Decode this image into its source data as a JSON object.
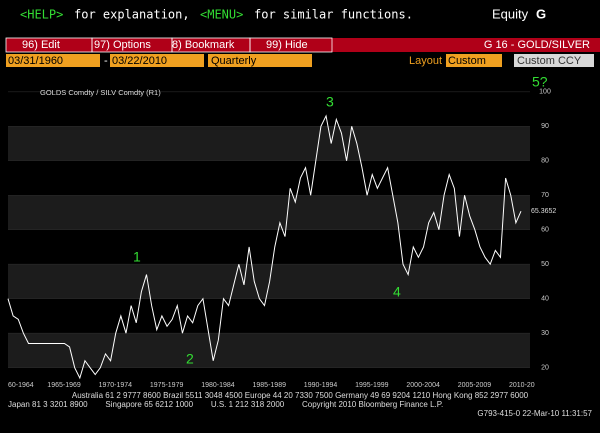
{
  "header": {
    "help_key": "<HELP>",
    "help_text": "for explanation,",
    "menu_key": "<MENU>",
    "menu_text": "for similar functions.",
    "market": "Equity",
    "market_key": "G"
  },
  "toolbar": {
    "items": [
      "96) Edit",
      "97) Options",
      "8) Bookmark",
      "99) Hide"
    ],
    "function": "G 16 - GOLD/SILVER"
  },
  "controls": {
    "start_date": "03/31/1960",
    "separator": "-",
    "end_date": "03/22/2010",
    "period": "Quarterly",
    "layout_label": "Layout",
    "layout": "Custom",
    "currency": "Custom CCY"
  },
  "chart_data": {
    "type": "line",
    "legend": "GOLDS Comdty / SILV Comdty (R1)",
    "last_value_label": "65.3652",
    "x_labels": [
      "60-1964",
      "1965-1969",
      "1970-1974",
      "1975-1979",
      "1980-1984",
      "1985-1989",
      "1990-1994",
      "1995-1999",
      "2000-2004",
      "2005-2009",
      "2010-20"
    ],
    "series": [
      {
        "name": "GOLDS Comdty / SILV Comdty",
        "color": "#ffffff",
        "values": [
          40,
          35,
          34,
          30,
          27,
          27,
          27,
          27,
          27,
          27,
          27,
          27,
          26,
          20,
          17,
          22,
          20,
          18,
          20,
          24,
          22,
          30,
          35,
          30,
          38,
          33,
          42,
          47,
          38,
          31,
          35,
          32,
          34,
          38,
          30,
          35,
          33,
          38,
          40,
          31,
          22,
          28,
          40,
          38,
          44,
          50,
          44,
          55,
          45,
          40,
          38,
          45,
          55,
          62,
          58,
          72,
          68,
          75,
          78,
          70,
          80,
          90,
          93,
          85,
          92,
          88,
          80,
          90,
          85,
          78,
          70,
          76,
          72,
          75,
          78,
          70,
          62,
          50,
          47,
          55,
          52,
          55,
          62,
          65,
          60,
          70,
          76,
          72,
          58,
          70,
          64,
          60,
          55,
          52,
          50,
          54,
          52,
          75,
          70,
          62,
          65.3652
        ]
      }
    ],
    "ylim": [
      17,
      104
    ],
    "yticks": [
      20,
      30,
      40,
      50,
      60,
      70,
      80,
      90,
      100
    ],
    "grid": true,
    "annotations": [
      "1",
      "2",
      "3",
      "4",
      "5?"
    ]
  },
  "footer": {
    "line1": "Australia 61 2 9777 8600 Brazil 5511 3048 4500 Europe 44 20 7330 7500 Germany 49 69 9204 1210 Hong Kong 852 2977 6000",
    "line2": "Japan 81 3 3201 8900        Singapore 65 6212 1000        U.S. 1 212 318 2000        Copyright 2010 Bloomberg Finance L.P.",
    "line3": "G793-415-0 22-Mar-10 11:31:57"
  }
}
